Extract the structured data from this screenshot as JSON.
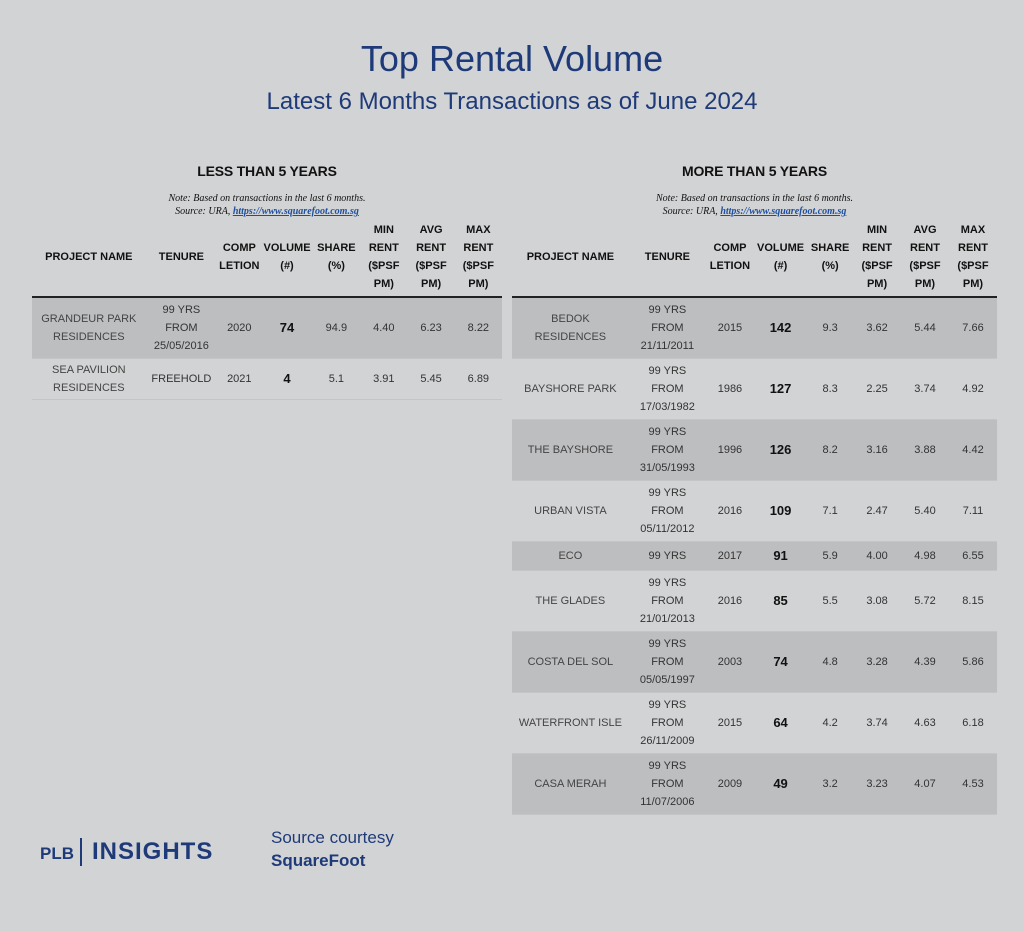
{
  "title": "Top Rental Volume",
  "subtitle": "Latest 6 Months Transactions as of June 2024",
  "note": {
    "line1": "Note: Based on transactions in the last 6 months.",
    "source_prefix": "Source: URA, ",
    "link": "https://www.squarefoot.com.sg"
  },
  "headers": {
    "project": "PROJECT NAME",
    "tenure": "TENURE",
    "completion": [
      "COMP",
      "LETION"
    ],
    "volume": [
      "VOLUME",
      "(#)"
    ],
    "share": [
      "SHARE",
      "(%)"
    ],
    "min": [
      "MIN",
      "RENT",
      "($PSF",
      "PM)"
    ],
    "avg": [
      "AVG",
      "RENT",
      "($PSF",
      "PM)"
    ],
    "max": [
      "MAX",
      "RENT",
      "($PSF",
      "PM)"
    ]
  },
  "left": {
    "title": "LESS THAN 5 YEARS",
    "rows": [
      {
        "name": [
          "GRANDEUR PARK",
          "RESIDENCES"
        ],
        "tenure": [
          "99 YRS",
          "FROM",
          "25/05/2016"
        ],
        "comp": "2020",
        "volume": "74",
        "share": "94.9",
        "min": "4.40",
        "avg": "6.23",
        "max": "8.22"
      },
      {
        "name": [
          "SEA PAVILION",
          "RESIDENCES"
        ],
        "tenure": [
          "FREEHOLD"
        ],
        "comp": "2021",
        "volume": "4",
        "share": "5.1",
        "min": "3.91",
        "avg": "5.45",
        "max": "6.89"
      }
    ]
  },
  "right": {
    "title": "MORE THAN 5 YEARS",
    "rows": [
      {
        "name": [
          "BEDOK",
          "RESIDENCES"
        ],
        "tenure": [
          "99 YRS",
          "FROM",
          "21/11/2011"
        ],
        "comp": "2015",
        "volume": "142",
        "share": "9.3",
        "min": "3.62",
        "avg": "5.44",
        "max": "7.66"
      },
      {
        "name": [
          "BAYSHORE PARK"
        ],
        "tenure": [
          "99 YRS",
          "FROM",
          "17/03/1982"
        ],
        "comp": "1986",
        "volume": "127",
        "share": "8.3",
        "min": "2.25",
        "avg": "3.74",
        "max": "4.92"
      },
      {
        "name": [
          "THE BAYSHORE"
        ],
        "tenure": [
          "99 YRS",
          "FROM",
          "31/05/1993"
        ],
        "comp": "1996",
        "volume": "126",
        "share": "8.2",
        "min": "3.16",
        "avg": "3.88",
        "max": "4.42"
      },
      {
        "name": [
          "URBAN VISTA"
        ],
        "tenure": [
          "99 YRS",
          "FROM",
          "05/11/2012"
        ],
        "comp": "2016",
        "volume": "109",
        "share": "7.1",
        "min": "2.47",
        "avg": "5.40",
        "max": "7.11"
      },
      {
        "name": [
          "ECO"
        ],
        "tenure": [
          "99 YRS"
        ],
        "comp": "2017",
        "volume": "91",
        "share": "5.9",
        "min": "4.00",
        "avg": "4.98",
        "max": "6.55"
      },
      {
        "name": [
          "THE GLADES"
        ],
        "tenure": [
          "99 YRS",
          "FROM",
          "21/01/2013"
        ],
        "comp": "2016",
        "volume": "85",
        "share": "5.5",
        "min": "3.08",
        "avg": "5.72",
        "max": "8.15"
      },
      {
        "name": [
          "COSTA DEL SOL"
        ],
        "tenure": [
          "99 YRS",
          "FROM",
          "05/05/1997"
        ],
        "comp": "2003",
        "volume": "74",
        "share": "4.8",
        "min": "3.28",
        "avg": "4.39",
        "max": "5.86"
      },
      {
        "name": [
          "WATERFRONT ISLE"
        ],
        "tenure": [
          "99 YRS",
          "FROM",
          "26/11/2009"
        ],
        "comp": "2015",
        "volume": "64",
        "share": "4.2",
        "min": "3.74",
        "avg": "4.63",
        "max": "6.18"
      },
      {
        "name": [
          "CASA MERAH"
        ],
        "tenure": [
          "99 YRS",
          "FROM",
          "11/07/2006"
        ],
        "comp": "2009",
        "volume": "49",
        "share": "3.2",
        "min": "3.23",
        "avg": "4.07",
        "max": "4.53"
      }
    ]
  },
  "footer": {
    "logo_plb": "PLB",
    "logo_insights": "INSIGHTS",
    "source_line1": "Source courtesy",
    "source_line2": "SquareFoot"
  }
}
